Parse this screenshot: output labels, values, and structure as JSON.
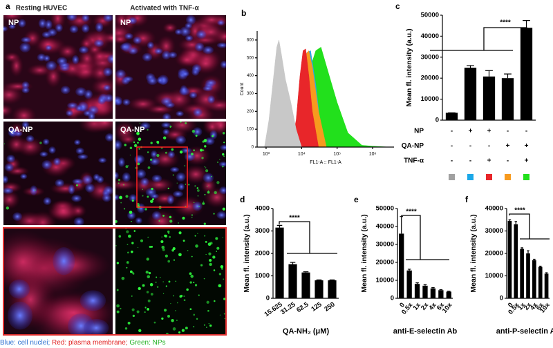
{
  "panels": {
    "label": "a",
    "columns": [
      "Resting HUVEC",
      "Activated with TNF-α"
    ],
    "images": [
      "NP",
      "NP",
      "QA-NP",
      "QA-NP"
    ]
  },
  "caption": [
    "Blue: cell nuclei;",
    "Red: plasma membrane;",
    "Green: NPs"
  ],
  "chart_data": [
    {
      "type": "histogram-overlay",
      "label": "b",
      "ylabel": "Count",
      "xlabel": "FL1-A :: FL1-A",
      "xscale": "log",
      "xlim": [
        560,
        4000000
      ],
      "xticks": [
        {
          "value": 1000,
          "label": "10³"
        },
        {
          "value": 10000,
          "label": "10⁴"
        },
        {
          "value": 100000,
          "label": "10⁵"
        },
        {
          "value": 1000000,
          "label": "10⁶"
        }
      ],
      "ylim": [
        0,
        650
      ],
      "yticks": [
        0,
        100,
        200,
        300,
        400,
        500,
        600
      ],
      "series": [
        {
          "color": "#22e01c",
          "x": [
            8000,
            12000,
            18000,
            25000,
            35000,
            60000,
            100000,
            200000,
            500000,
            1000000,
            3000000
          ],
          "values": [
            0,
            200,
            450,
            540,
            560,
            400,
            250,
            80,
            10,
            5,
            0
          ]
        },
        {
          "color": "#2aa8e8",
          "x": [
            7000,
            10000,
            14000,
            18000,
            25000,
            40000
          ],
          "values": [
            0,
            300,
            530,
            540,
            350,
            0
          ]
        },
        {
          "color": "#f79a1e",
          "x": [
            6000,
            8000,
            10000,
            13000,
            16000,
            20000,
            30000,
            50000
          ],
          "values": [
            0,
            120,
            350,
            520,
            540,
            450,
            200,
            0
          ]
        },
        {
          "color": "#e8262a",
          "x": [
            5000,
            7000,
            9000,
            11000,
            13000,
            16000,
            20000,
            30000
          ],
          "values": [
            0,
            150,
            400,
            540,
            550,
            400,
            200,
            0
          ]
        },
        {
          "color": "#c8c8c8",
          "x": [
            900,
            1200,
            1600,
            2000,
            2300,
            2700,
            3500,
            5000,
            7000,
            10000
          ],
          "values": [
            0,
            150,
            380,
            560,
            600,
            520,
            380,
            250,
            100,
            0
          ]
        }
      ]
    },
    {
      "type": "bar",
      "label": "c",
      "ylabel": "Mean fl. intensity (a.u.)",
      "color": "#000000",
      "values": [
        3500,
        25000,
        20800,
        20000,
        44000
      ],
      "errors": [
        0,
        1000,
        2800,
        2000,
        3500
      ],
      "ylim": [
        0,
        50000
      ],
      "yticks": [
        0,
        10000,
        20000,
        30000,
        40000,
        50000
      ],
      "annotation": "****",
      "rows": [
        {
          "label": "NP",
          "marks": [
            "-",
            "+",
            "+",
            "-",
            "-"
          ]
        },
        {
          "label": "QA-NP",
          "marks": [
            "-",
            "-",
            "-",
            "+",
            "+"
          ]
        },
        {
          "label": "TNF-α",
          "marks": [
            "-",
            "-",
            "+",
            "-",
            "+"
          ]
        }
      ],
      "swatch_colors": [
        "#a0a0a0",
        "#1ba8e8",
        "#e8262a",
        "#f79a1e",
        "#22e01c"
      ]
    },
    {
      "type": "bar",
      "label": "d",
      "ylabel": "Mean fl. intensity (a.u.)",
      "xlabel": "QA-NH₂ (μM)",
      "color": "#000000",
      "categories": [
        "15.625",
        "31.25",
        "62.5",
        "125",
        "250"
      ],
      "values": [
        3150,
        1520,
        1150,
        800,
        800
      ],
      "errors": [
        100,
        80,
        30,
        20,
        20
      ],
      "ylim": [
        0,
        4000
      ],
      "yticks": [
        0,
        1000,
        2000,
        3000,
        4000
      ],
      "annotation": "****"
    },
    {
      "type": "bar",
      "label": "e",
      "ylabel": "Mean fl. intensity (a.u.)",
      "xlabel": "anti-E-selectin Ab",
      "color": "#000000",
      "categories": [
        "0",
        "0.5x",
        "1x",
        "2x",
        "4x",
        "6x",
        "10x"
      ],
      "values": [
        36000,
        15500,
        8000,
        7000,
        5500,
        4500,
        3700
      ],
      "errors": [
        9500,
        700,
        600,
        600,
        400,
        300,
        300
      ],
      "ylim": [
        0,
        50000
      ],
      "yticks": [
        0,
        10000,
        20000,
        30000,
        40000,
        50000
      ],
      "annotation": "****"
    },
    {
      "type": "bar",
      "label": "f",
      "ylabel": "Mean fl. intensity (a.u.)",
      "xlabel": "anti-P-selectin Ab",
      "color": "#000000",
      "categories": [
        "0",
        "0.5x",
        "1x",
        "2x",
        "4x",
        "6x",
        "10x"
      ],
      "values": [
        34500,
        33000,
        22000,
        20000,
        17000,
        14000,
        11000
      ],
      "errors": [
        500,
        1200,
        500,
        1200,
        400,
        300,
        400
      ],
      "ylim": [
        0,
        40000
      ],
      "yticks": [
        0,
        10000,
        20000,
        30000,
        40000
      ],
      "annotation": "****"
    }
  ]
}
